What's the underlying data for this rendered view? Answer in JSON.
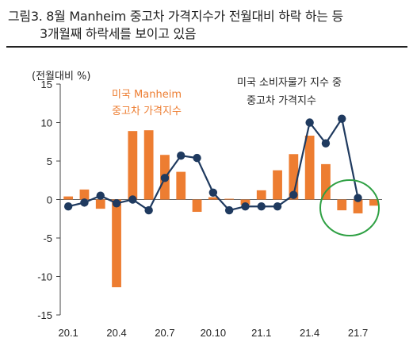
{
  "header": {
    "title_line1": "그림3. 8월 Manheim 중고차 가격지수가 전월대비 하락 하는 등",
    "title_line2": "3개월째 하락세를 보이고 있음"
  },
  "chart_data": {
    "type": "bar+line",
    "ylabel": "(전월대비 %)",
    "ylim": [
      -15,
      15
    ],
    "yticks": [
      15,
      10,
      5,
      0,
      -5,
      -10,
      -15
    ],
    "x": [
      "20.1",
      "20.2",
      "20.3",
      "20.4",
      "20.5",
      "20.6",
      "20.7",
      "20.8",
      "20.9",
      "20.10",
      "20.11",
      "20.12",
      "21.1",
      "21.2",
      "21.3",
      "21.4",
      "21.5",
      "21.6",
      "21.7",
      "21.8"
    ],
    "xtick_labels": [
      "20.1",
      "20.4",
      "20.7",
      "20.10",
      "21.1",
      "21.4",
      "21.7"
    ],
    "series": [
      {
        "name": "미국 Manheim 중고차 가격지수",
        "type": "bar",
        "color": "#ED7D31",
        "values": [
          0.4,
          1.3,
          -1.2,
          -11.4,
          8.9,
          9.0,
          5.8,
          3.6,
          -1.6,
          0.3,
          0.1,
          -0.7,
          1.2,
          3.8,
          5.9,
          8.3,
          4.6,
          -1.4,
          -1.8,
          -0.8
        ]
      },
      {
        "name": "미국 소비자물가 지수 중 중고차 가격지수",
        "type": "line",
        "color": "#1F3A5F",
        "values": [
          -0.9,
          -0.4,
          0.5,
          -0.5,
          0.0,
          -1.4,
          2.8,
          5.7,
          5.4,
          0.9,
          -1.4,
          -0.9,
          -0.9,
          -0.9,
          0.6,
          10.0,
          7.3,
          10.5,
          0.2,
          null
        ]
      }
    ],
    "annotations": {
      "manheim_label_line1": "미국 Manheim",
      "manheim_label_line2": "중고차 가격지수",
      "cpi_label_line1": "미국 소비자물가 지수 중",
      "cpi_label_line2": "중고차 가격지수"
    },
    "highlight_color": "#2EA043",
    "grid": false
  }
}
